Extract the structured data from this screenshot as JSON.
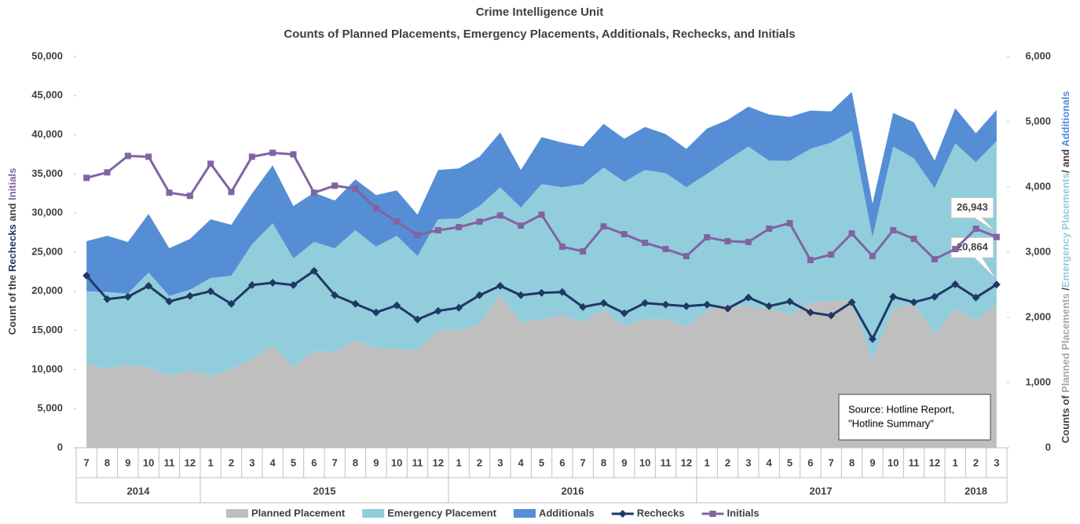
{
  "chart_data": {
    "type": "stacked-area-line",
    "title": "Crime Intelligence Unit",
    "subtitle": "Counts of Planned Placements, Emergency Placements, Additionals, Rechecks, and Initials",
    "y_label_parts": [
      {
        "text": "Count of the ",
        "color": "#404040"
      },
      {
        "text": "Rechecks",
        "color": "#1f3864"
      },
      {
        "text": " and ",
        "color": "#404040"
      },
      {
        "text": "Initials",
        "color": "#8064a2"
      }
    ],
    "y2_label_parts": [
      {
        "text": "Counts of ",
        "color": "#404040"
      },
      {
        "text": "Planned Placements ",
        "color": "#a6a6a6"
      },
      {
        "text": "/",
        "color": "#404040"
      },
      {
        "text": "Emergency Placements",
        "color": "#92cddc"
      },
      {
        "text": "/ and ",
        "color": "#404040"
      },
      {
        "text": "Additionals",
        "color": "#558ed5"
      }
    ],
    "categories": [
      "7",
      "8",
      "9",
      "10",
      "11",
      "12",
      "1",
      "2",
      "3",
      "4",
      "5",
      "6",
      "7",
      "8",
      "9",
      "10",
      "11",
      "12",
      "1",
      "2",
      "3",
      "4",
      "5",
      "6",
      "7",
      "8",
      "9",
      "10",
      "11",
      "12",
      "1",
      "2",
      "3",
      "4",
      "5",
      "6",
      "7",
      "8",
      "9",
      "10",
      "11",
      "12",
      "1",
      "2",
      "3"
    ],
    "years": [
      {
        "label": "2014",
        "span": 6
      },
      {
        "label": "2015",
        "span": 12
      },
      {
        "label": "2016",
        "span": 12
      },
      {
        "label": "2017",
        "span": 12
      },
      {
        "label": "2018",
        "span": 3
      }
    ],
    "ylim": [
      0,
      50000
    ],
    "yticks": [
      0,
      {
        "value": 5000,
        "label": "5,000"
      },
      {
        "value": 10000,
        "label": "10,000"
      },
      {
        "value": 15000,
        "label": "15,000"
      },
      {
        "value": 20000,
        "label": "20,000"
      },
      {
        "value": 25000,
        "label": "25,000"
      },
      {
        "value": 30000,
        "label": "30,000"
      },
      {
        "value": 35000,
        "label": "35,000"
      },
      {
        "value": 40000,
        "label": "40,000"
      },
      {
        "value": 45000,
        "label": "45,000"
      },
      {
        "value": 50000,
        "label": "50,000"
      }
    ],
    "y2lim": [
      0,
      6000
    ],
    "y2ticks": [
      0,
      {
        "value": 1000,
        "label": "1,000"
      },
      {
        "value": 2000,
        "label": "2,000"
      },
      {
        "value": 3000,
        "label": "3,000"
      },
      {
        "value": 4000,
        "label": "4,000"
      },
      {
        "value": 5000,
        "label": "5,000"
      },
      {
        "value": 6000,
        "label": "6,000"
      }
    ],
    "series": [
      {
        "name": "Planned Placement",
        "kind": "area",
        "axis": "y2",
        "color": "#bfbfbf",
        "values": [
          1284,
          1212,
          1272,
          1236,
          1104,
          1176,
          1104,
          1212,
          1356,
          1572,
          1236,
          1488,
          1464,
          1656,
          1536,
          1512,
          1500,
          1800,
          1800,
          1908,
          2340,
          1920,
          1968,
          2028,
          1932,
          2112,
          1872,
          1968,
          1968,
          1860,
          2100,
          2196,
          2160,
          2136,
          2040,
          2220,
          2256,
          2256,
          1344,
          2136,
          2196,
          1752,
          2124,
          1956,
          2196
        ]
      },
      {
        "name": "Emergency Placement",
        "kind": "area",
        "axis": "y2",
        "color": "#92cddc",
        "values": [
          1116,
          1176,
          1092,
          1452,
          1224,
          1248,
          1500,
          1428,
          1764,
          1872,
          1668,
          1668,
          1596,
          1680,
          1548,
          1740,
          1440,
          1704,
          1716,
          1800,
          1656,
          1764,
          2076,
          1968,
          2112,
          2184,
          2208,
          2292,
          2244,
          2136,
          2100,
          2220,
          2460,
          2268,
          2364,
          2364,
          2424,
          2604,
          1884,
          2484,
          2244,
          2232,
          2544,
          2424,
          2508
        ]
      },
      {
        "name": "Additionals",
        "kind": "area",
        "axis": "y2",
        "color": "#558ed5",
        "values": [
          768,
          864,
          792,
          900,
          732,
          780,
          900,
          780,
          780,
          888,
          804,
          756,
          732,
          780,
          792,
          696,
          636,
          756,
          768,
          756,
          840,
          576,
          720,
          684,
          576,
          672,
          660,
          660,
          600,
          588,
          696,
          612,
          612,
          708,
          672,
          588,
          480,
          600,
          516,
          516,
          552,
          420,
          540,
          444,
          480
        ]
      },
      {
        "name": "Rechecks",
        "kind": "line",
        "marker": "diamond",
        "color": "#1f3864",
        "values": [
          22000,
          19000,
          19300,
          20700,
          18700,
          19400,
          20000,
          18400,
          20800,
          21100,
          20800,
          22600,
          19500,
          18400,
          17300,
          18200,
          16400,
          17500,
          17900,
          19500,
          20700,
          19500,
          19800,
          19900,
          18000,
          18500,
          17200,
          18500,
          18300,
          18100,
          18300,
          17800,
          19200,
          18100,
          18700,
          17300,
          16900,
          18600,
          13900,
          19300,
          18600,
          19300,
          20900,
          19200,
          20864
        ],
        "value_labels": [
          null,
          null,
          null,
          null,
          null,
          null,
          null,
          null,
          null,
          null,
          null,
          null,
          null,
          null,
          null,
          null,
          null,
          null,
          null,
          null,
          null,
          null,
          null,
          null,
          null,
          null,
          null,
          null,
          null,
          null,
          null,
          null,
          null,
          null,
          null,
          null,
          null,
          null,
          null,
          null,
          null,
          null,
          null,
          null,
          "20,864"
        ]
      },
      {
        "name": "Initials",
        "kind": "line",
        "marker": "square",
        "color": "#8064a2",
        "values": [
          34500,
          35200,
          37300,
          37200,
          32600,
          32200,
          36300,
          32700,
          37200,
          37700,
          37500,
          32600,
          33500,
          33100,
          30600,
          28900,
          27200,
          27800,
          28200,
          28900,
          29700,
          28400,
          29800,
          25700,
          25100,
          28300,
          27300,
          26200,
          25400,
          24500,
          26900,
          26400,
          26300,
          28000,
          28700,
          24000,
          24700,
          27400,
          24500,
          27800,
          26700,
          24100,
          25400,
          28000,
          26943
        ],
        "value_labels": [
          null,
          null,
          null,
          null,
          null,
          null,
          null,
          null,
          null,
          null,
          null,
          null,
          null,
          null,
          null,
          null,
          null,
          null,
          null,
          null,
          null,
          null,
          null,
          null,
          null,
          null,
          null,
          null,
          null,
          null,
          null,
          null,
          null,
          null,
          null,
          null,
          null,
          null,
          null,
          null,
          null,
          null,
          null,
          null,
          "26,943"
        ]
      }
    ],
    "source_lines": [
      "Source: Hotline Report,",
      "\"Hotline Summary\""
    ]
  }
}
